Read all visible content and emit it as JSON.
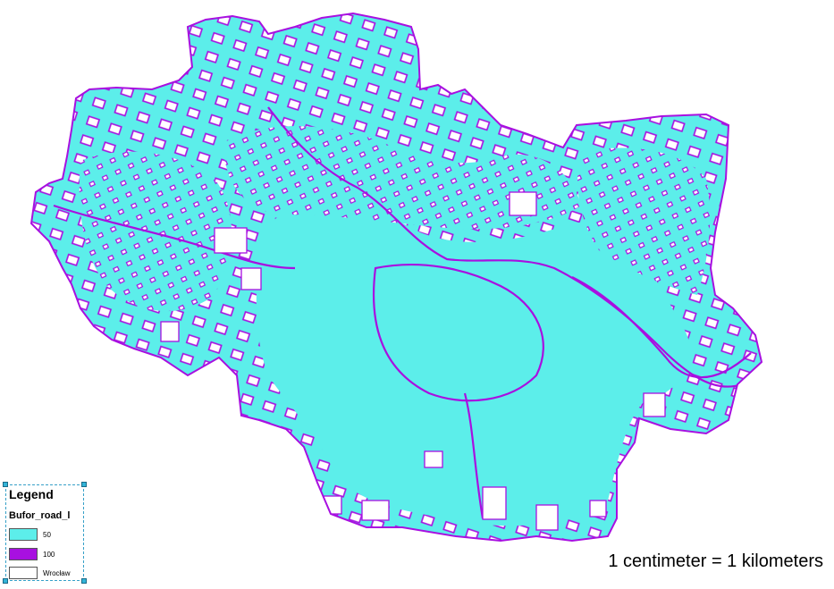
{
  "map": {
    "colors": {
      "buffer_50": "#5ceeea",
      "buffer_100": "#a810e0",
      "city_fill": "#ffffff",
      "city_outline": "#6a6a6a"
    }
  },
  "legend": {
    "title": "Legend",
    "layer": "Bufor_road_l",
    "items": [
      {
        "label": "50",
        "color": "#5ceeea"
      },
      {
        "label": "100",
        "color": "#a810e0"
      },
      {
        "label": "Wrocław",
        "color": "#ffffff"
      }
    ]
  },
  "scale": {
    "text": "1 centimeter = 1 kilometers"
  }
}
